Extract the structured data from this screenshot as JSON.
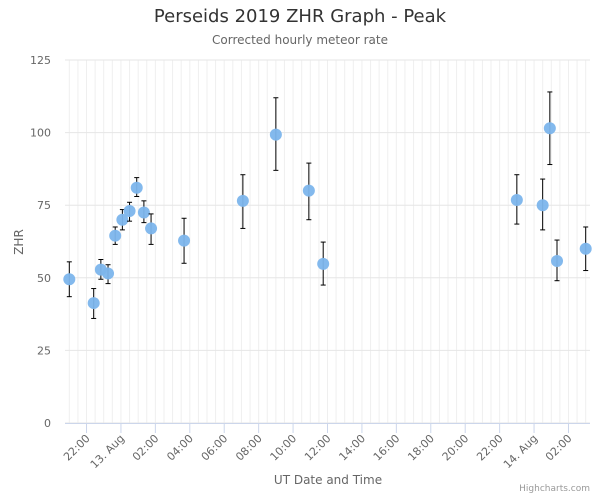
{
  "chart_data": {
    "type": "scatter",
    "title": "Perseids 2019 ZHR Graph - Peak",
    "subtitle": "Corrected hourly meteor rate",
    "xlabel": "UT Date and Time",
    "ylabel": "ZHR",
    "ylim": [
      0,
      125
    ],
    "yticks": [
      0,
      25,
      50,
      75,
      100,
      125
    ],
    "xlim": [
      "2019-08-12T20:45",
      "2019-08-14T03:15"
    ],
    "xticks": [
      {
        "t": "2019-08-12T22:00",
        "label": "22:00"
      },
      {
        "t": "2019-08-13T00:00",
        "label": "13. Aug"
      },
      {
        "t": "2019-08-13T02:00",
        "label": "02:00"
      },
      {
        "t": "2019-08-13T04:00",
        "label": "04:00"
      },
      {
        "t": "2019-08-13T06:00",
        "label": "06:00"
      },
      {
        "t": "2019-08-13T08:00",
        "label": "08:00"
      },
      {
        "t": "2019-08-13T10:00",
        "label": "10:00"
      },
      {
        "t": "2019-08-13T12:00",
        "label": "12:00"
      },
      {
        "t": "2019-08-13T14:00",
        "label": "14:00"
      },
      {
        "t": "2019-08-13T16:00",
        "label": "16:00"
      },
      {
        "t": "2019-08-13T18:00",
        "label": "18:00"
      },
      {
        "t": "2019-08-13T20:00",
        "label": "20:00"
      },
      {
        "t": "2019-08-13T22:00",
        "label": "22:00"
      },
      {
        "t": "2019-08-14T00:00",
        "label": "14. Aug"
      },
      {
        "t": "2019-08-14T02:00",
        "label": "02:00"
      }
    ],
    "grid": true,
    "legend": "none",
    "series": [
      {
        "color": "#7cb5ec",
        "points": [
          {
            "x": "2019-08-12T21:00",
            "y": 49.5,
            "low": 43.5,
            "high": 55.5
          },
          {
            "x": "2019-08-12T22:25",
            "y": 41.3,
            "low": 36.0,
            "high": 46.3
          },
          {
            "x": "2019-08-12T22:50",
            "y": 52.8,
            "low": 49.5,
            "high": 56.3
          },
          {
            "x": "2019-08-12T23:15",
            "y": 51.5,
            "low": 48.0,
            "high": 54.5
          },
          {
            "x": "2019-08-12T23:40",
            "y": 64.5,
            "low": 61.5,
            "high": 67.5
          },
          {
            "x": "2019-08-13T00:05",
            "y": 70.0,
            "low": 66.5,
            "high": 73.5
          },
          {
            "x": "2019-08-13T00:30",
            "y": 73.0,
            "low": 69.5,
            "high": 76.0
          },
          {
            "x": "2019-08-13T00:55",
            "y": 81.0,
            "low": 78.0,
            "high": 84.5
          },
          {
            "x": "2019-08-13T01:20",
            "y": 72.5,
            "low": 69.0,
            "high": 76.5
          },
          {
            "x": "2019-08-13T01:45",
            "y": 67.0,
            "low": 61.5,
            "high": 72.0
          },
          {
            "x": "2019-08-13T03:40",
            "y": 62.8,
            "low": 55.0,
            "high": 70.5
          },
          {
            "x": "2019-08-13T07:05",
            "y": 76.5,
            "low": 67.0,
            "high": 85.5
          },
          {
            "x": "2019-08-13T09:00",
            "y": 99.3,
            "low": 87.0,
            "high": 112.0
          },
          {
            "x": "2019-08-13T10:55",
            "y": 80.0,
            "low": 70.0,
            "high": 89.5
          },
          {
            "x": "2019-08-13T11:45",
            "y": 54.8,
            "low": 47.5,
            "high": 62.3
          },
          {
            "x": "2019-08-13T23:00",
            "y": 76.8,
            "low": 68.5,
            "high": 85.5
          },
          {
            "x": "2019-08-14T00:30",
            "y": 75.0,
            "low": 66.5,
            "high": 84.0
          },
          {
            "x": "2019-08-14T00:55",
            "y": 101.5,
            "low": 89.0,
            "high": 114.0
          },
          {
            "x": "2019-08-14T01:20",
            "y": 55.8,
            "low": 49.0,
            "high": 63.0
          },
          {
            "x": "2019-08-14T03:00",
            "y": 60.0,
            "low": 52.5,
            "high": 67.5
          }
        ]
      }
    ]
  },
  "credits": "Highcharts.com"
}
